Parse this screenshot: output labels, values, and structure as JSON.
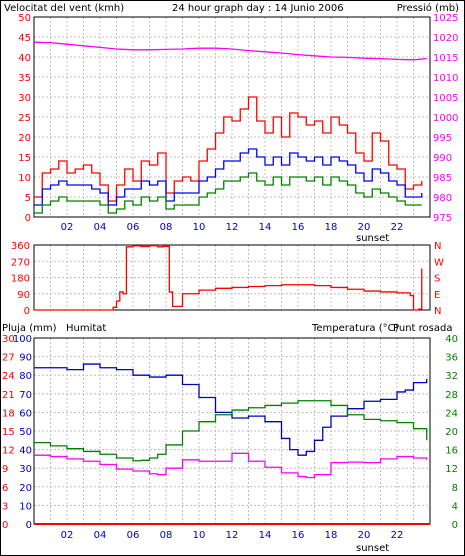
{
  "colors": {
    "wind": "#ff0000",
    "gust": "#ff0000",
    "wind_avg": "#0000ff",
    "wind_min": "#008000",
    "pressure": "#ff00ff",
    "direction": "#ff0000",
    "rain": "#ff0000",
    "humidity": "#0000c0",
    "temperature": "#008000",
    "dewpoint": "#ff00ff",
    "grid": "#c0c0c0",
    "axis": "#000000"
  },
  "chart_data": [
    {
      "type": "line",
      "title": "24 hour graph day : 14 Junio 2006",
      "ylabel_left": "Velocitat del vent (kmh)",
      "ylabel_right": "Pressió (mb)",
      "x_ticks": [
        "02",
        "04",
        "06",
        "08",
        "10",
        "12",
        "14",
        "16",
        "18",
        "20",
        "22"
      ],
      "x_note": "sunset",
      "x_range": [
        0,
        24
      ],
      "ylim_left": [
        0,
        50
      ],
      "y_ticks_left": [
        "0",
        "5",
        "10",
        "15",
        "20",
        "25",
        "30",
        "35",
        "40",
        "45",
        "50"
      ],
      "ylim_right": [
        975,
        1025
      ],
      "y_ticks_right": [
        "975",
        "980",
        "985",
        "990",
        "995",
        "1000",
        "1005",
        "1010",
        "1015",
        "1020",
        "1025"
      ],
      "series": [
        {
          "name": "gust",
          "axis": "left",
          "x": [
            0,
            0.5,
            1,
            1.5,
            2,
            2.5,
            3,
            3.5,
            4,
            4.5,
            5,
            5.5,
            6,
            6.5,
            7,
            7.5,
            8,
            8.5,
            9,
            9.5,
            10,
            10.5,
            11,
            11.5,
            12,
            12.5,
            13,
            13.5,
            14,
            14.5,
            15,
            15.5,
            16,
            16.5,
            17,
            17.5,
            18,
            18.5,
            19,
            19.5,
            20,
            20.5,
            21,
            21.5,
            22,
            22.5,
            23,
            23.5
          ],
          "values": [
            5,
            11,
            12,
            14,
            11,
            12,
            13,
            11,
            8,
            4,
            8,
            12,
            9,
            14,
            13,
            16,
            6,
            9,
            10,
            9,
            14,
            17,
            21,
            25,
            24,
            27,
            30,
            24,
            21,
            25,
            20,
            26,
            25,
            23,
            24,
            21,
            25,
            23,
            21,
            16,
            14,
            21,
            19,
            13,
            12,
            7,
            8,
            9
          ]
        },
        {
          "name": "avg",
          "axis": "left",
          "x": [
            0,
            0.5,
            1,
            1.5,
            2,
            2.5,
            3,
            3.5,
            4,
            4.5,
            5,
            5.5,
            6,
            6.5,
            7,
            7.5,
            8,
            8.5,
            9,
            9.5,
            10,
            10.5,
            11,
            11.5,
            12,
            12.5,
            13,
            13.5,
            14,
            14.5,
            15,
            15.5,
            16,
            16.5,
            17,
            17.5,
            18,
            18.5,
            19,
            19.5,
            20,
            20.5,
            21,
            21.5,
            22,
            22.5,
            23,
            23.5
          ],
          "values": [
            3,
            7,
            8,
            9,
            8,
            8,
            8,
            7,
            6,
            3,
            5,
            7,
            7,
            9,
            8,
            9,
            4,
            6,
            6,
            6,
            9,
            10,
            12,
            14,
            14,
            16,
            17,
            15,
            13,
            15,
            13,
            16,
            15,
            14,
            15,
            13,
            15,
            14,
            13,
            11,
            9,
            12,
            11,
            9,
            8,
            5,
            5,
            6
          ]
        },
        {
          "name": "min",
          "axis": "left",
          "x": [
            0,
            0.5,
            1,
            1.5,
            2,
            2.5,
            3,
            3.5,
            4,
            4.5,
            5,
            5.5,
            6,
            6.5,
            7,
            7.5,
            8,
            8.5,
            9,
            9.5,
            10,
            10.5,
            11,
            11.5,
            12,
            12.5,
            13,
            13.5,
            14,
            14.5,
            15,
            15.5,
            16,
            16.5,
            17,
            17.5,
            18,
            18.5,
            19,
            19.5,
            20,
            20.5,
            21,
            21.5,
            22,
            22.5,
            23,
            23.5
          ],
          "values": [
            1,
            3,
            4,
            5,
            4,
            4,
            4,
            4,
            3,
            1,
            2,
            4,
            3,
            5,
            4,
            5,
            2,
            3,
            3,
            3,
            5,
            6,
            7,
            9,
            9,
            10,
            11,
            9,
            8,
            10,
            8,
            10,
            10,
            9,
            10,
            8,
            10,
            9,
            8,
            6,
            5,
            7,
            6,
            5,
            4,
            3,
            3,
            3
          ]
        },
        {
          "name": "pressure",
          "axis": "right",
          "x": [
            0,
            1,
            2,
            3,
            4,
            5,
            6,
            7,
            8,
            9,
            10,
            11,
            12,
            13,
            14,
            15,
            16,
            17,
            18,
            19,
            20,
            21,
            22,
            23,
            23.8
          ],
          "values": [
            1018.7,
            1018.6,
            1018.2,
            1017.8,
            1017.4,
            1017.0,
            1016.8,
            1016.8,
            1016.9,
            1017.0,
            1017.2,
            1017.2,
            1017.0,
            1016.6,
            1016.3,
            1016.0,
            1015.6,
            1015.3,
            1015.0,
            1014.9,
            1014.7,
            1014.6,
            1014.4,
            1014.3,
            1014.6
          ]
        }
      ]
    },
    {
      "type": "line",
      "ylabel": "",
      "x_range": [
        0,
        24
      ],
      "ylim": [
        0,
        360
      ],
      "y_ticks_left": [
        "0",
        "90",
        "180",
        "270",
        "360"
      ],
      "y_labels_right": [
        "N",
        "E",
        "S",
        "W",
        "N"
      ],
      "series": [
        {
          "name": "direction",
          "x": [
            0,
            4.5,
            4.8,
            5,
            5.2,
            5.4,
            5.6,
            6,
            6.5,
            7,
            7.5,
            7.8,
            8.2,
            8.4,
            9,
            10,
            11,
            12,
            13,
            14,
            15,
            16,
            17,
            18,
            19,
            20,
            21,
            22,
            22.8,
            23,
            23.3,
            23.5
          ],
          "values": [
            0,
            0,
            15,
            50,
            100,
            90,
            350,
            355,
            352,
            356,
            350,
            352,
            100,
            20,
            90,
            110,
            120,
            125,
            130,
            135,
            140,
            140,
            135,
            125,
            115,
            105,
            100,
            95,
            80,
            0,
            5,
            230
          ]
        }
      ]
    },
    {
      "type": "line",
      "ylabel_left_a": "Pluja (mm)",
      "ylabel_left_b": "Humitat",
      "ylabel_right_a": "Temperatura (°C)",
      "ylabel_right_b": "Punt rosada",
      "x_ticks": [
        "02",
        "04",
        "06",
        "08",
        "10",
        "12",
        "14",
        "16",
        "18",
        "20",
        "22"
      ],
      "x_note": "sunset",
      "x_range": [
        0,
        24
      ],
      "y_ticks_rain": [
        "0",
        "3",
        "6",
        "9",
        "12",
        "15",
        "18",
        "21",
        "24",
        "27",
        "30"
      ],
      "y_ticks_humidity": [
        "0",
        "10",
        "20",
        "30",
        "40",
        "50",
        "60",
        "70",
        "80",
        "90",
        "100"
      ],
      "ylim_humidity": [
        0,
        100
      ],
      "y_ticks_temp": [
        "0",
        "4",
        "8",
        "12",
        "16",
        "20",
        "24",
        "28",
        "32",
        "36",
        "40"
      ],
      "ylim_temp": [
        0,
        40
      ],
      "series": [
        {
          "name": "rain",
          "axis": "rain",
          "x": [
            0,
            24
          ],
          "values": [
            0,
            0
          ]
        },
        {
          "name": "humidity",
          "axis": "humidity",
          "x": [
            0,
            1,
            2,
            3,
            4,
            5,
            6,
            7,
            8,
            9,
            10,
            11,
            12,
            13,
            14,
            15,
            15.5,
            16,
            16.5,
            17,
            17.5,
            18,
            19,
            20,
            21,
            22,
            22.5,
            23,
            23.8
          ],
          "values": [
            84,
            84,
            83,
            86,
            84,
            83,
            80,
            79,
            80,
            75,
            68,
            60,
            57,
            58,
            55,
            46,
            40,
            37,
            39,
            45,
            52,
            58,
            62,
            66,
            67,
            71,
            72,
            76,
            78
          ]
        },
        {
          "name": "temperature",
          "axis": "temp",
          "x": [
            0,
            1,
            2,
            3,
            4,
            5,
            6,
            6.5,
            7,
            7.5,
            8,
            9,
            10,
            11,
            12,
            13,
            14,
            15,
            16,
            17,
            18,
            19,
            20,
            21,
            22,
            23,
            23.8
          ],
          "values": [
            17.5,
            16.8,
            16.2,
            15.6,
            15.0,
            14.2,
            13.6,
            13.7,
            14.2,
            15.0,
            17.0,
            20.0,
            22.0,
            23.5,
            24.5,
            25.0,
            25.5,
            26.0,
            26.5,
            26.5,
            25.5,
            23.5,
            22.5,
            22.2,
            21.8,
            20.5,
            18.0
          ]
        },
        {
          "name": "dewpoint",
          "axis": "temp",
          "x": [
            0,
            1,
            2,
            3,
            4,
            5,
            6,
            7,
            7.5,
            8,
            9,
            10,
            11,
            12,
            13,
            14,
            15,
            16,
            16.5,
            17,
            18,
            19,
            20,
            21,
            22,
            23,
            23.8
          ],
          "values": [
            14.8,
            14.5,
            14.0,
            13.5,
            12.8,
            11.8,
            11.4,
            10.8,
            10.6,
            12.0,
            13.8,
            13.5,
            13.5,
            15.2,
            13.5,
            12.2,
            11.0,
            10.2,
            10.0,
            10.6,
            13.2,
            13.3,
            13.2,
            14.0,
            14.5,
            14.2,
            13.8
          ]
        }
      ]
    }
  ]
}
